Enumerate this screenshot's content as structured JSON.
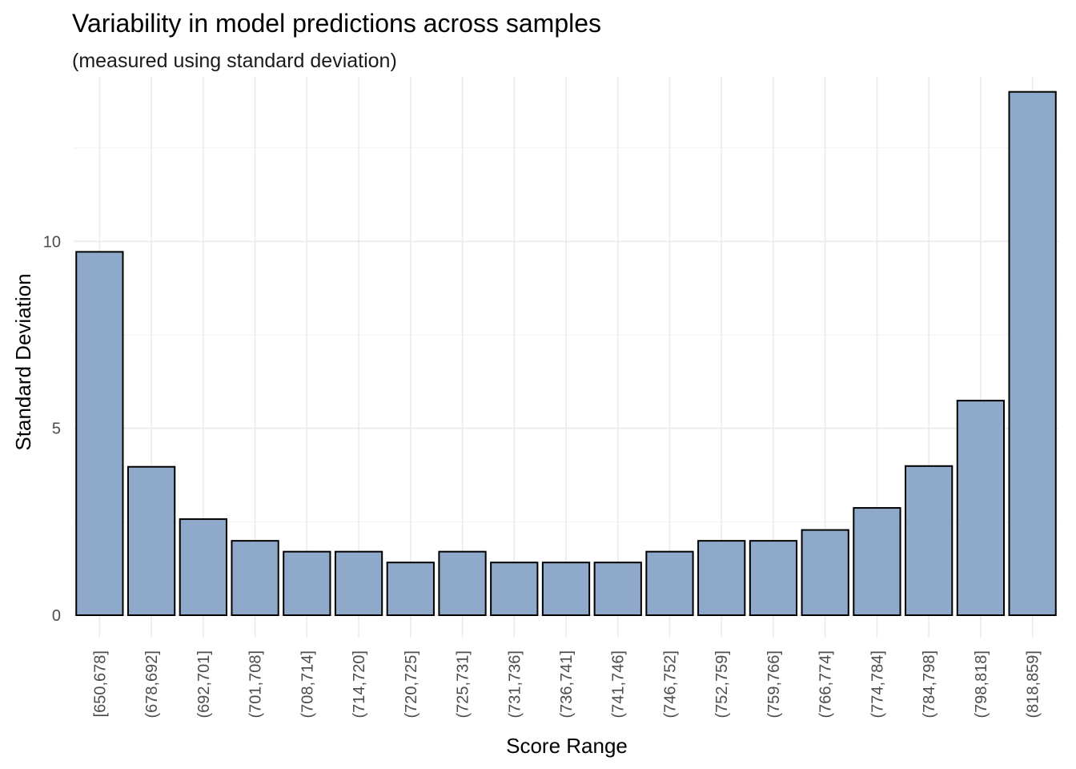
{
  "chart_data": {
    "type": "bar",
    "title": "Variability in model predictions across samples",
    "subtitle": "(measured using standard deviation)",
    "xlabel": "Score Range",
    "ylabel": "Standard Deviation",
    "categories": [
      "[650,678]",
      "(678,692]",
      "(692,701]",
      "(701,708]",
      "(708,714]",
      "(714,720]",
      "(720,725]",
      "(725,731]",
      "(731,736]",
      "(736,741]",
      "(741,746]",
      "(746,752]",
      "(752,759]",
      "(759,766]",
      "(766,774]",
      "(774,784]",
      "(784,798]",
      "(798,818]",
      "(818,859]"
    ],
    "values": [
      9.72,
      3.97,
      2.57,
      1.99,
      1.7,
      1.7,
      1.41,
      1.7,
      1.41,
      1.41,
      1.41,
      1.7,
      1.99,
      1.99,
      2.28,
      2.87,
      3.99,
      5.74,
      14.0
    ],
    "ylim": [
      -0.6,
      14.4
    ],
    "yticks": [
      0,
      5,
      10
    ],
    "grid": true,
    "legend": "none",
    "colors": {
      "bar_fill": "#8EA9C9",
      "bar_stroke": "#000000"
    }
  }
}
